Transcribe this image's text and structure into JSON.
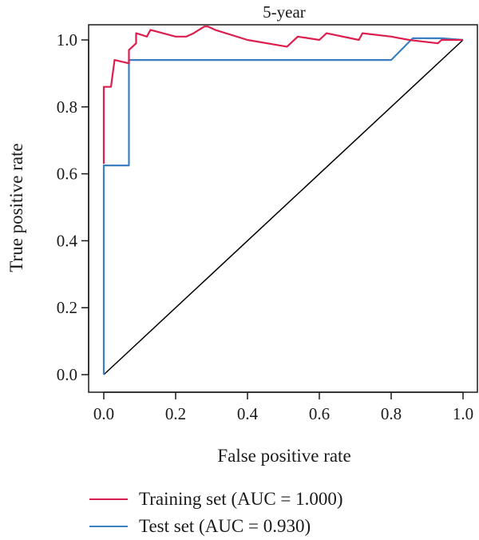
{
  "chart_data": {
    "type": "line",
    "title": "5-year",
    "xlabel": "False positive rate",
    "ylabel": "True positive rate",
    "xlim": [
      0,
      1
    ],
    "ylim": [
      0,
      1
    ],
    "x_ticks": [
      "0.0",
      "0.2",
      "0.4",
      "0.6",
      "0.8",
      "1.0"
    ],
    "y_ticks": [
      "0.0",
      "0.2",
      "0.4",
      "0.6",
      "0.8",
      "1.0"
    ],
    "grid": false,
    "legend_position": "bottom",
    "series": [
      {
        "name": "Training set (AUC = 1.000)",
        "color": "#dc1e4e",
        "x": [
          0.0,
          0.0,
          0.02,
          0.03,
          0.07,
          0.07,
          0.08,
          0.09,
          0.09,
          0.12,
          0.13,
          0.2,
          0.23,
          0.25,
          0.28,
          0.29,
          0.31,
          0.4,
          0.51,
          0.54,
          0.6,
          0.62,
          0.71,
          0.72,
          0.8,
          0.85,
          0.93,
          0.94,
          1.0
        ],
        "y": [
          0.63,
          0.86,
          0.86,
          0.94,
          0.93,
          0.97,
          0.98,
          0.99,
          1.02,
          1.01,
          1.03,
          1.01,
          1.01,
          1.02,
          1.04,
          1.04,
          1.03,
          1.0,
          0.98,
          1.01,
          1.0,
          1.02,
          1.0,
          1.02,
          1.01,
          1.0,
          0.99,
          1.0,
          1.0
        ]
      },
      {
        "name": "Test set (AUC = 0.930)",
        "color": "#3a7fc1",
        "x": [
          0.0,
          0.0,
          0.07,
          0.07,
          0.8,
          0.86,
          0.94,
          1.0
        ],
        "y": [
          0.0,
          0.625,
          0.625,
          0.94,
          0.94,
          1.005,
          1.005,
          1.0
        ]
      },
      {
        "name": "",
        "color": "#000000",
        "x": [
          0.0,
          1.0
        ],
        "y": [
          0.0,
          1.0
        ]
      }
    ]
  }
}
